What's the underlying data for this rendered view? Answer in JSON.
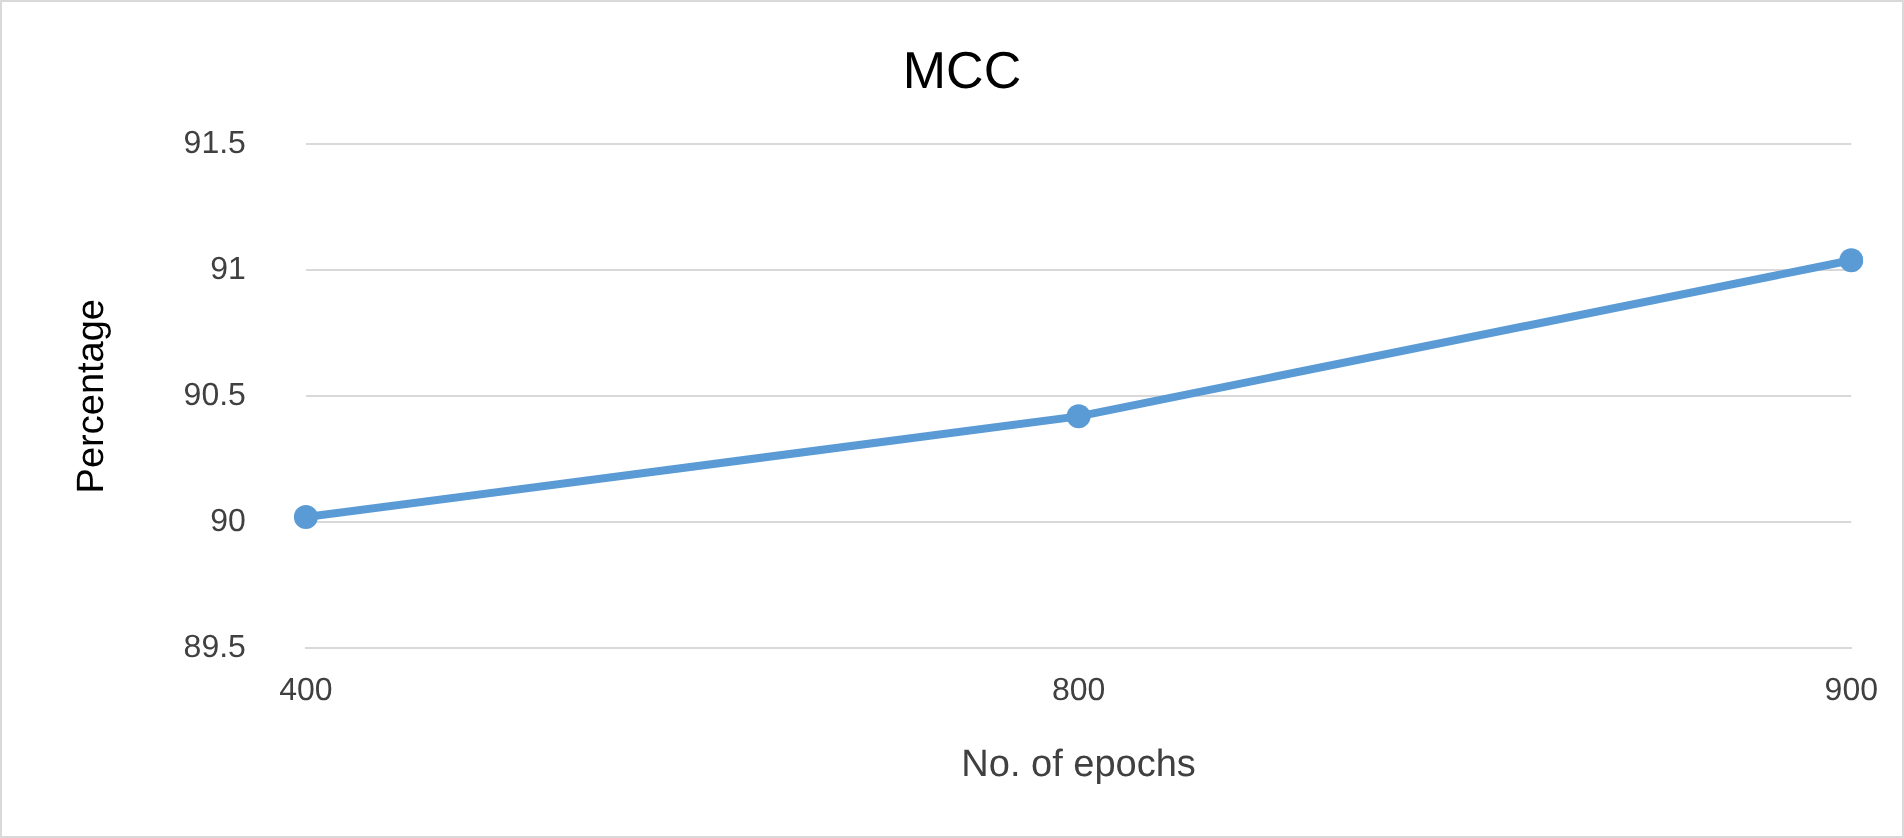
{
  "chart_data": {
    "type": "line",
    "title": "MCC",
    "xlabel": "No. of epochs",
    "ylabel": "Percentage",
    "categories": [
      "400",
      "800",
      "900"
    ],
    "series": [
      {
        "color": "#5b9bd5",
        "values": [
          90.02,
          90.42,
          91.04
        ]
      }
    ],
    "ylim": [
      89.5,
      91.5
    ],
    "yticks": [
      89.5,
      90,
      90.5,
      91,
      91.5
    ],
    "grid": "y",
    "legend": false,
    "marker": "circle",
    "line_style": "solid"
  }
}
